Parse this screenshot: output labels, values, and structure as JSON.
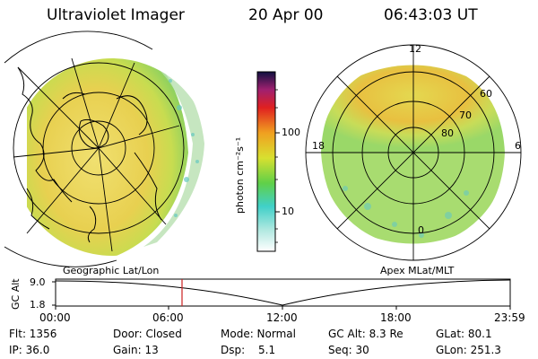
{
  "header": {
    "title": "Ultraviolet Imager",
    "date": "20 Apr 00",
    "time": "06:43:03 UT"
  },
  "colorbar": {
    "unit": "photon cm⁻²s⁻¹",
    "ticks": [
      "100",
      "10"
    ]
  },
  "polar": {
    "lat_labels": [
      "60",
      "70",
      "80"
    ],
    "mlt_labels": [
      "12",
      "18",
      "6",
      "0"
    ]
  },
  "panels": {
    "left_label": "Geographic Lat/Lon",
    "right_label": "Apex MLat/MLT"
  },
  "altitude_plot": {
    "ylabel": "GC Alt",
    "yticks": [
      "9.0",
      "1.8"
    ],
    "xticks": [
      "00:00",
      "06:00",
      "12:00",
      "18:00",
      "23:59"
    ],
    "marker_time": "06:43:03"
  },
  "info": {
    "flt": "Flt: 1356",
    "door": "Door: Closed",
    "mode": "Mode: Normal",
    "gc_alt": "GC Alt: 8.3 Re",
    "glat": "GLat: 80.1",
    "ip": "IP: 36.0",
    "gain": "Gain: 13",
    "dsp_label": "Dsp:",
    "dsp_value": "5.1",
    "seq": "Seq: 30",
    "glon": "GLon: 251.3"
  },
  "colors": {
    "marker": "#cc2020",
    "colorbar": [
      "#ffffff",
      "#40d0d0",
      "#70d040",
      "#d8e030",
      "#f0a020",
      "#e02020",
      "#802060",
      "#101040"
    ]
  }
}
